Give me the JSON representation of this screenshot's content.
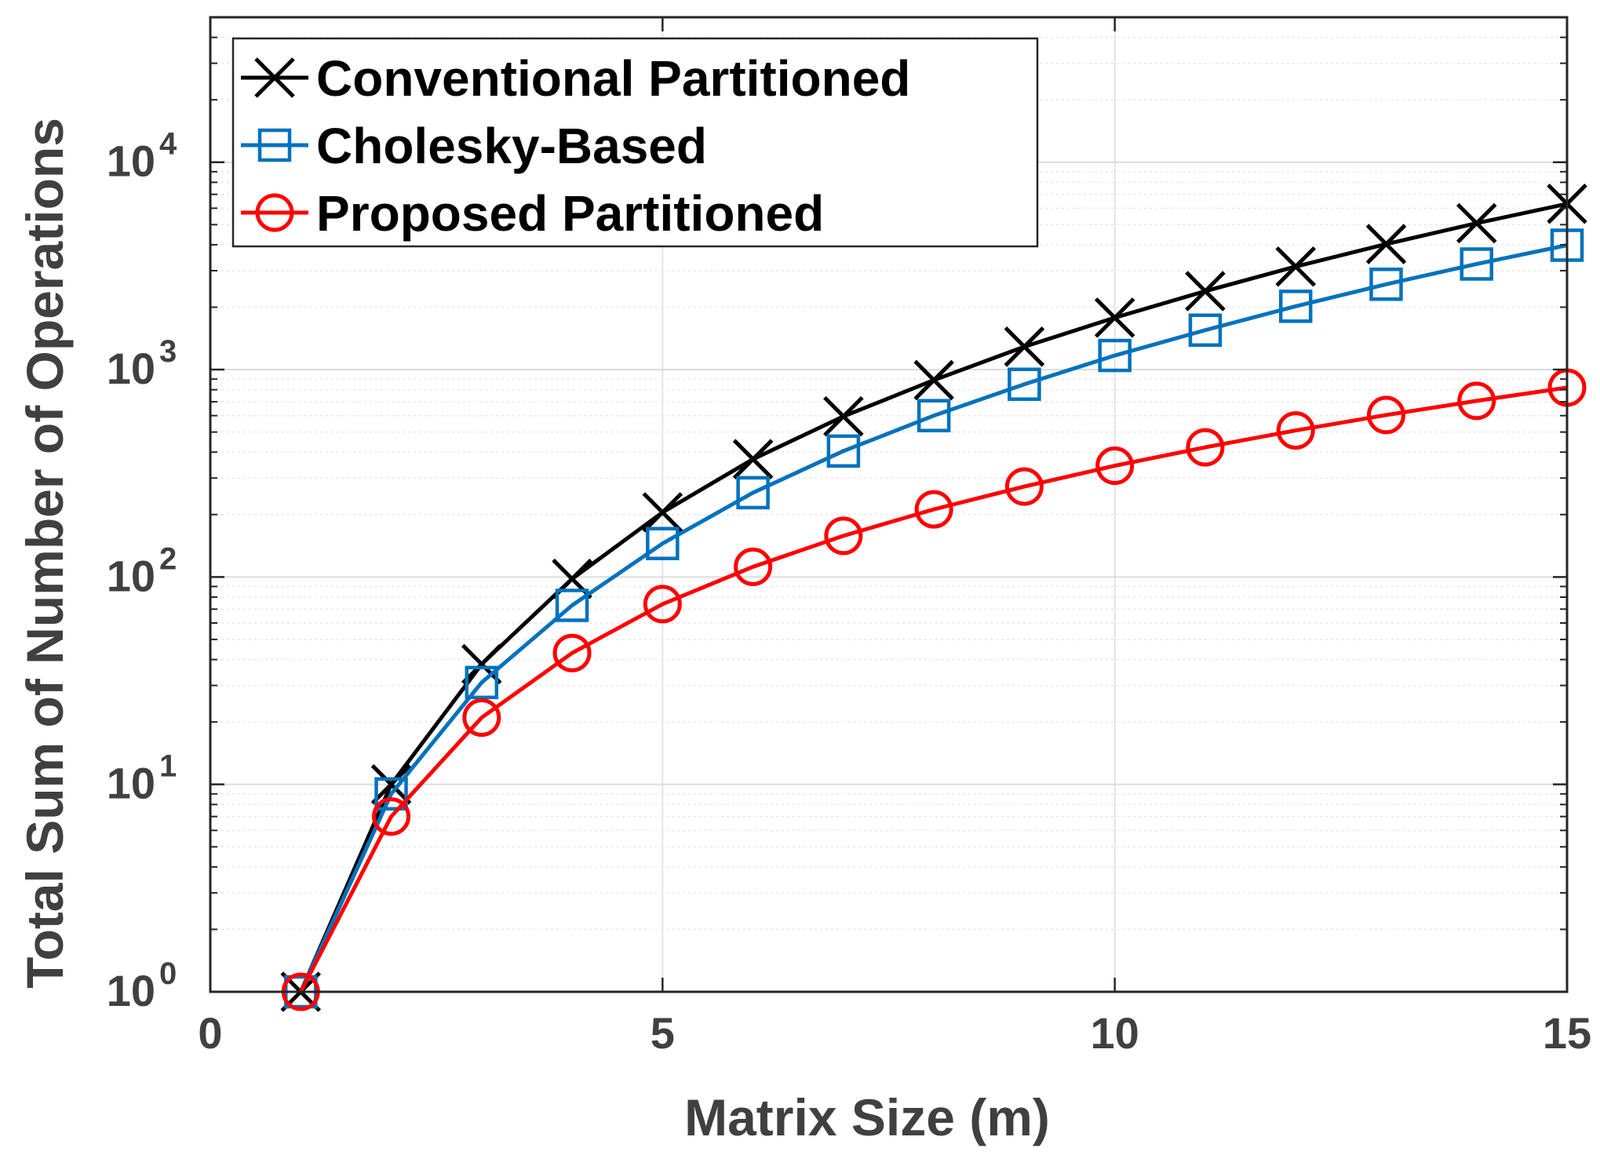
{
  "chart_data": {
    "type": "line",
    "xlabel": "Matrix Size (m)",
    "ylabel": "Total Sum of Number of Operations",
    "xlim": [
      0,
      15
    ],
    "ylim": [
      1,
      50000
    ],
    "yscale": "log",
    "grid": true,
    "legend_position": "top-left",
    "x_ticks": [
      {
        "value": 0,
        "label": "0"
      },
      {
        "value": 5,
        "label": "5"
      },
      {
        "value": 10,
        "label": "10"
      },
      {
        "value": 15,
        "label": "15"
      }
    ],
    "y_ticks": [
      {
        "value": 1,
        "base": "10",
        "exp": "0"
      },
      {
        "value": 10,
        "base": "10",
        "exp": "1"
      },
      {
        "value": 100,
        "base": "10",
        "exp": "2"
      },
      {
        "value": 1000,
        "base": "10",
        "exp": "3"
      },
      {
        "value": 10000,
        "base": "10",
        "exp": "4"
      }
    ],
    "x": [
      1,
      2,
      3,
      4,
      5,
      6,
      7,
      8,
      9,
      10,
      11,
      12,
      13,
      14,
      15
    ],
    "series": [
      {
        "name": "Conventional Partitioned",
        "color": "#000000",
        "marker": "x",
        "values": [
          1,
          10,
          38,
          98,
          205,
          370,
          595,
          890,
          1290,
          1780,
          2390,
          3140,
          4030,
          5080,
          6300
        ]
      },
      {
        "name": "Cholesky-Based",
        "color": "#0072BD",
        "marker": "square",
        "values": [
          1,
          9,
          31,
          73,
          145,
          255,
          405,
          600,
          850,
          1170,
          1550,
          2020,
          2580,
          3230,
          3980
        ]
      },
      {
        "name": "Proposed Partitioned",
        "color": "#FF0000",
        "marker": "circle",
        "values": [
          1,
          7,
          21,
          43,
          74,
          112,
          158,
          212,
          273,
          344,
          422,
          509,
          604,
          707,
          819
        ]
      }
    ]
  }
}
